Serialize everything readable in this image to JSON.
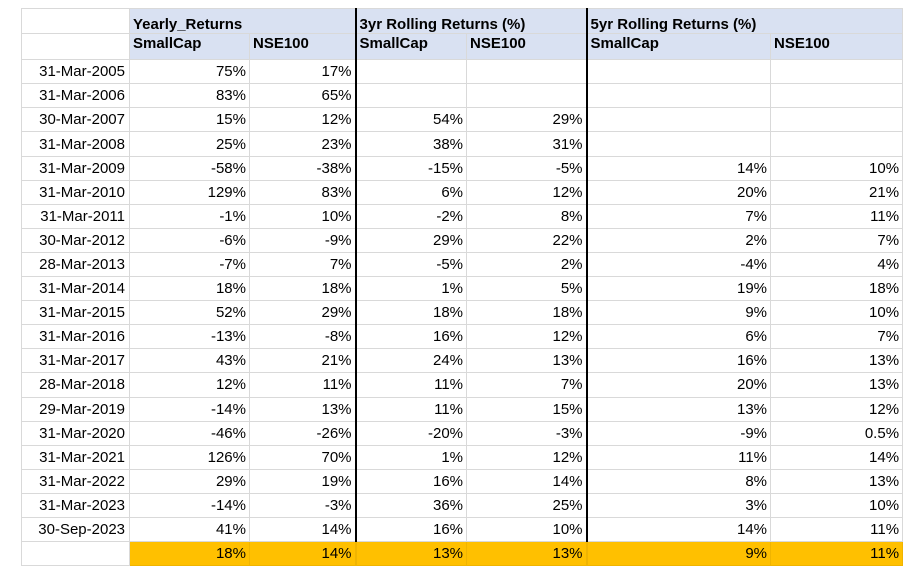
{
  "header": {
    "groups": [
      "Yearly_Returns",
      "3yr Rolling Returns (%)",
      "5yr Rolling Returns (%)"
    ],
    "subcolumns": [
      "SmallCap",
      "NSE100",
      "SmallCap",
      "NSE100",
      "SmallCap",
      "NSE100"
    ]
  },
  "rows": [
    {
      "date": "31-Mar-2005",
      "values": [
        "75%",
        "17%",
        "",
        "",
        "",
        ""
      ]
    },
    {
      "date": "31-Mar-2006",
      "values": [
        "83%",
        "65%",
        "",
        "",
        "",
        ""
      ]
    },
    {
      "date": "30-Mar-2007",
      "values": [
        "15%",
        "12%",
        "54%",
        "29%",
        "",
        ""
      ]
    },
    {
      "date": "31-Mar-2008",
      "values": [
        "25%",
        "23%",
        "38%",
        "31%",
        "",
        ""
      ]
    },
    {
      "date": "31-Mar-2009",
      "values": [
        "-58%",
        "-38%",
        "-15%",
        "-5%",
        "14%",
        "10%"
      ]
    },
    {
      "date": "31-Mar-2010",
      "values": [
        "129%",
        "83%",
        "6%",
        "12%",
        "20%",
        "21%"
      ]
    },
    {
      "date": "31-Mar-2011",
      "values": [
        "-1%",
        "10%",
        "-2%",
        "8%",
        "7%",
        "11%"
      ]
    },
    {
      "date": "30-Mar-2012",
      "values": [
        "-6%",
        "-9%",
        "29%",
        "22%",
        "2%",
        "7%"
      ]
    },
    {
      "date": "28-Mar-2013",
      "values": [
        "-7%",
        "7%",
        "-5%",
        "2%",
        "-4%",
        "4%"
      ]
    },
    {
      "date": "31-Mar-2014",
      "values": [
        "18%",
        "18%",
        "1%",
        "5%",
        "19%",
        "18%"
      ]
    },
    {
      "date": "31-Mar-2015",
      "values": [
        "52%",
        "29%",
        "18%",
        "18%",
        "9%",
        "10%"
      ]
    },
    {
      "date": "31-Mar-2016",
      "values": [
        "-13%",
        "-8%",
        "16%",
        "12%",
        "6%",
        "7%"
      ]
    },
    {
      "date": "31-Mar-2017",
      "values": [
        "43%",
        "21%",
        "24%",
        "13%",
        "16%",
        "13%"
      ]
    },
    {
      "date": "28-Mar-2018",
      "values": [
        "12%",
        "11%",
        "11%",
        "7%",
        "20%",
        "13%"
      ]
    },
    {
      "date": "29-Mar-2019",
      "values": [
        "-14%",
        "13%",
        "11%",
        "15%",
        "13%",
        "12%"
      ]
    },
    {
      "date": "31-Mar-2020",
      "values": [
        "-46%",
        "-26%",
        "-20%",
        "-3%",
        "-9%",
        "0.5%"
      ]
    },
    {
      "date": "31-Mar-2021",
      "values": [
        "126%",
        "70%",
        "1%",
        "12%",
        "11%",
        "14%"
      ]
    },
    {
      "date": "31-Mar-2022",
      "values": [
        "29%",
        "19%",
        "16%",
        "14%",
        "8%",
        "13%"
      ]
    },
    {
      "date": "31-Mar-2023",
      "values": [
        "-14%",
        "-3%",
        "36%",
        "25%",
        "3%",
        "10%"
      ]
    },
    {
      "date": "30-Sep-2023",
      "values": [
        "41%",
        "14%",
        "16%",
        "10%",
        "14%",
        "11%"
      ]
    }
  ],
  "summary": {
    "values": [
      "18%",
      "14%",
      "13%",
      "13%",
      "9%",
      "11%"
    ]
  },
  "colors": {
    "header_fill": "#d9e1f2",
    "summary_fill": "#ffc000",
    "gridline": "#d9d9d9",
    "separator": "#000000"
  }
}
